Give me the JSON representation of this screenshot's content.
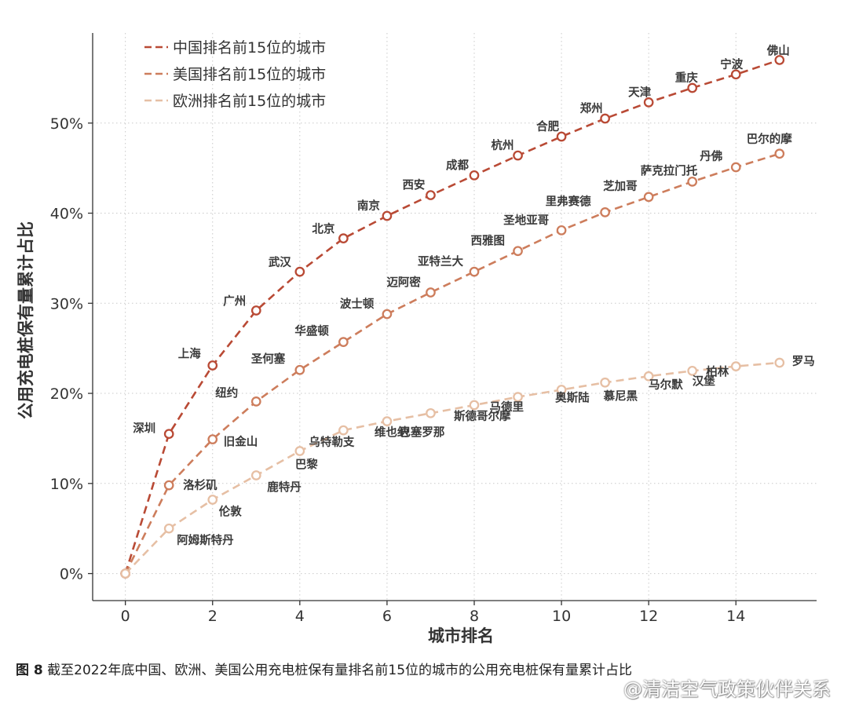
{
  "chart_data": {
    "type": "line",
    "xlabel": "城市排名",
    "ylabel": "公用充电桩保有量累计占比",
    "xlim": [
      -0.75,
      15.85
    ],
    "ylim": [
      -3,
      60
    ],
    "x_ticks": [
      0,
      2,
      4,
      6,
      8,
      10,
      12,
      14
    ],
    "y_ticks": [
      0,
      10,
      20,
      30,
      40,
      50
    ],
    "y_tick_labels": [
      "0%",
      "10%",
      "20%",
      "30%",
      "40%",
      "50%"
    ],
    "grid": true,
    "legend_position": "top-left",
    "series": [
      {
        "name": "中国排名前15位的城市",
        "color": "#b94a35",
        "x": [
          0,
          1,
          2,
          3,
          4,
          5,
          6,
          7,
          8,
          9,
          10,
          11,
          12,
          13,
          14,
          15
        ],
        "values": [
          0,
          15.5,
          23.1,
          29.2,
          33.5,
          37.2,
          39.7,
          42.0,
          44.2,
          46.4,
          48.5,
          50.5,
          52.3,
          53.9,
          55.4,
          57.0
        ],
        "point_labels": [
          "",
          "深圳",
          "上海",
          "广州",
          "武汉",
          "北京",
          "南京",
          "西安",
          "成都",
          "杭州",
          "合肥",
          "郑州",
          "天津",
          "重庆",
          "宁波",
          "佛山"
        ]
      },
      {
        "name": "美国排名前15位的城市",
        "color": "#cd7d5c",
        "x": [
          0,
          1,
          2,
          3,
          4,
          5,
          6,
          7,
          8,
          9,
          10,
          11,
          12,
          13,
          14,
          15
        ],
        "values": [
          0,
          9.8,
          14.9,
          19.1,
          22.6,
          25.7,
          28.8,
          31.2,
          33.5,
          35.8,
          38.1,
          40.1,
          41.8,
          43.5,
          45.1,
          46.6
        ],
        "point_labels": [
          "",
          "洛杉矶",
          "旧金山",
          "纽约",
          "圣何塞",
          "华盛顿",
          "波士顿",
          "迈阿密",
          "亚特兰大",
          "西雅图",
          "圣地亚哥",
          "里弗赛德",
          "芝加哥",
          "萨克拉门托",
          "丹佛",
          "巴尔的摩"
        ]
      },
      {
        "name": "欧洲排名前15位的城市",
        "color": "#e6bfa4",
        "x": [
          0,
          1,
          2,
          3,
          4,
          5,
          6,
          7,
          8,
          9,
          10,
          11,
          12,
          13,
          14,
          15
        ],
        "values": [
          0,
          5.0,
          8.2,
          10.9,
          13.6,
          15.9,
          16.9,
          17.8,
          18.7,
          19.6,
          20.4,
          21.2,
          21.9,
          22.5,
          23.0,
          23.4
        ],
        "point_labels": [
          "",
          "阿姆斯特丹",
          "伦敦",
          "鹿特丹",
          "巴黎",
          "乌特勒支",
          "维也纳",
          "巴塞罗那",
          "斯德哥尔摩",
          "马德里",
          "奥斯陆",
          "慕尼黑",
          "马尔默",
          "汉堡",
          "柏林",
          "罗马"
        ]
      }
    ]
  },
  "caption": {
    "figure_label": "图 8",
    "text": "截至2022年底中国、欧洲、美国公用充电桩保有量排名前15位的城市的公用充电桩保有量累计占比"
  },
  "watermark": "@清洁空气政策伙伴关系"
}
